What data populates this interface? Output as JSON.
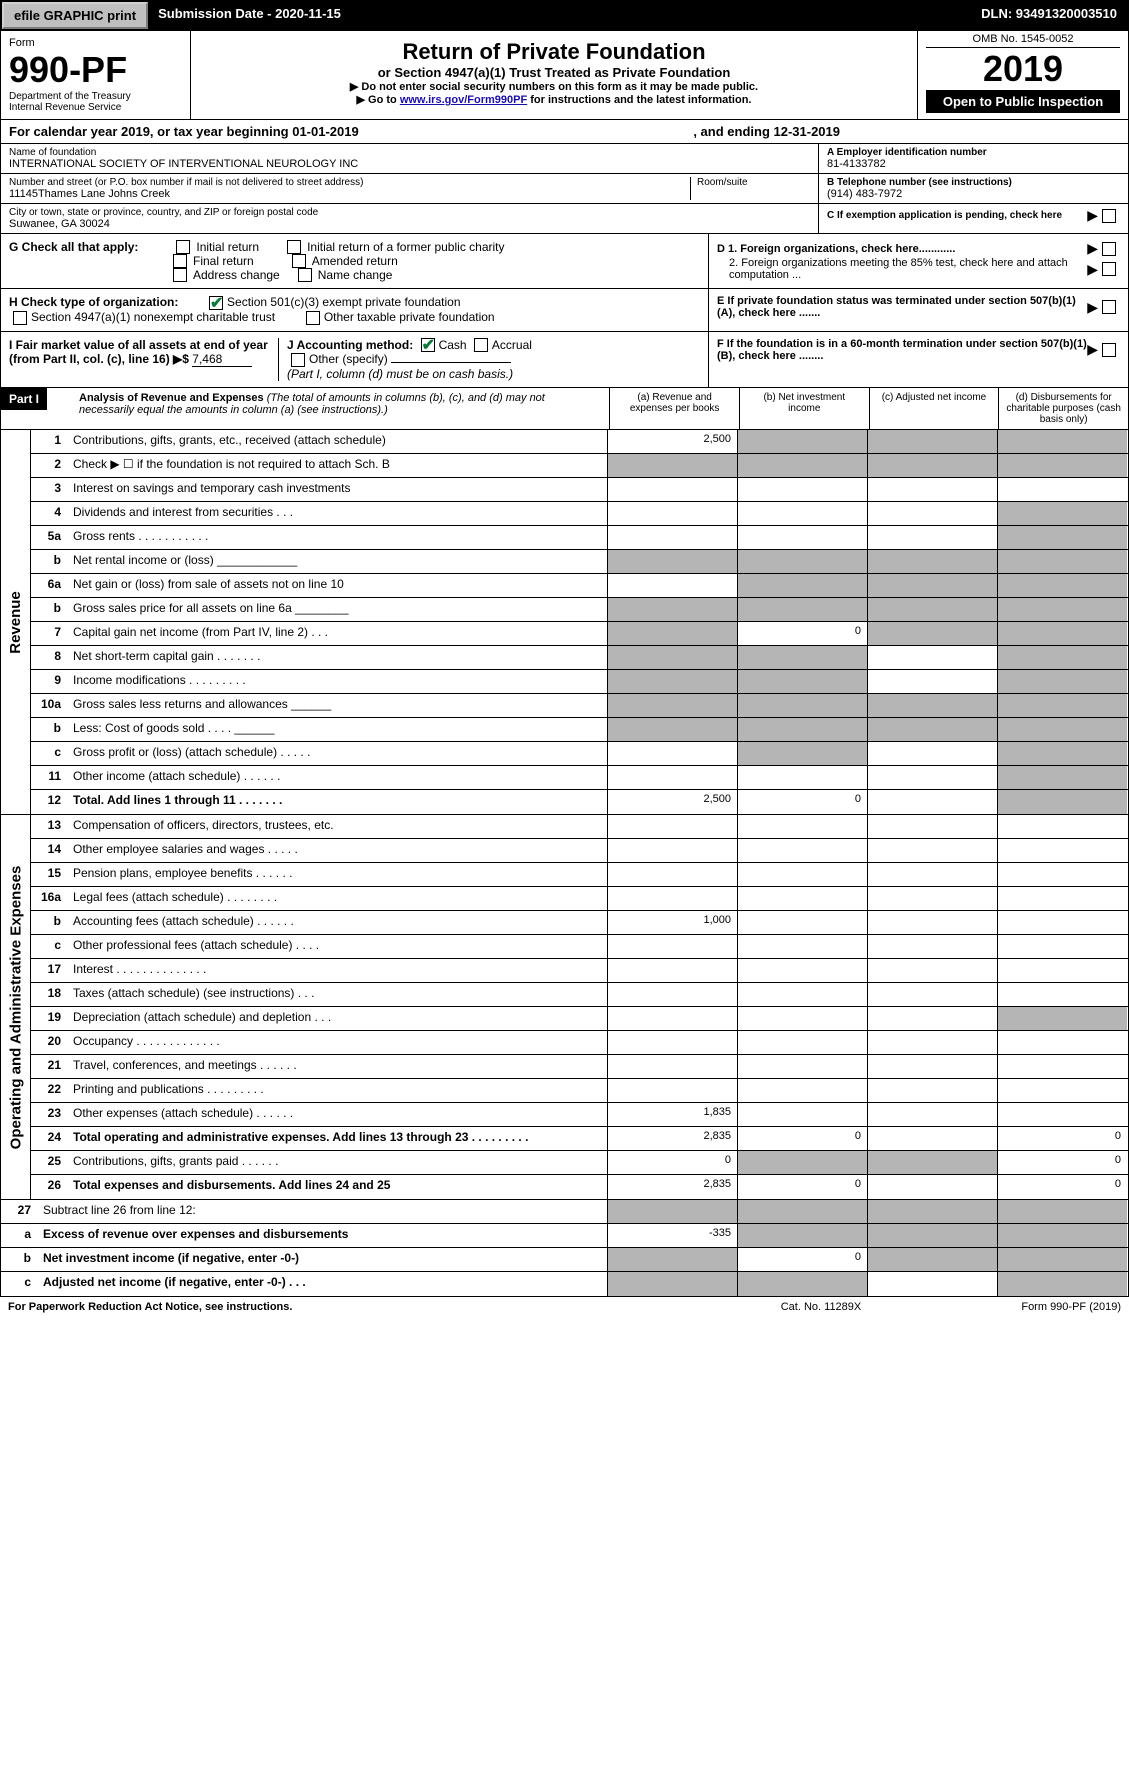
{
  "topbar": {
    "efile": "efile GRAPHIC print",
    "submission_label": "Submission Date - 2020-11-15",
    "dln": "DLN: 93491320003510"
  },
  "header": {
    "form_label": "Form",
    "form_number": "990-PF",
    "dept1": "Department of the Treasury",
    "dept2": "Internal Revenue Service",
    "title": "Return of Private Foundation",
    "subtitle": "or Section 4947(a)(1) Trust Treated as Private Foundation",
    "instr1": "▶ Do not enter social security numbers on this form as it may be made public.",
    "instr2_pre": "▶ Go to ",
    "instr2_link": "www.irs.gov/Form990PF",
    "instr2_post": " for instructions and the latest information.",
    "omb": "OMB No. 1545-0052",
    "year": "2019",
    "open": "Open to Public Inspection"
  },
  "cal": {
    "pre": "For calendar year 2019, or tax year beginning 01-01-2019",
    "mid": "",
    "post": ", and ending 12-31-2019"
  },
  "info": {
    "name_label": "Name of foundation",
    "name": "INTERNATIONAL SOCIETY OF INTERVENTIONAL NEUROLOGY INC",
    "addr_label": "Number and street (or P.O. box number if mail is not delivered to street address)",
    "addr": "11145Thames Lane Johns Creek",
    "room_label": "Room/suite",
    "city_label": "City or town, state or province, country, and ZIP or foreign postal code",
    "city": "Suwanee, GA  30024",
    "a_label": "A Employer identification number",
    "a_val": "81-4133782",
    "b_label": "B Telephone number (see instructions)",
    "b_val": "(914) 483-7972",
    "c_label": "C If exemption application is pending, check here"
  },
  "checks": {
    "g_label": "G Check all that apply:",
    "g_options": [
      "Initial return",
      "Initial return of a former public charity",
      "Final return",
      "Amended return",
      "Address change",
      "Name change"
    ],
    "h_label": "H Check type of organization:",
    "h_opt1": "Section 501(c)(3) exempt private foundation",
    "h_opt2": "Section 4947(a)(1) nonexempt charitable trust",
    "h_opt3": "Other taxable private foundation",
    "i_label": "I Fair market value of all assets at end of year (from Part II, col. (c), line 16) ▶$ ",
    "i_val": "7,468",
    "j_label": "J Accounting method:",
    "j_cash": "Cash",
    "j_accrual": "Accrual",
    "j_other": "Other (specify)",
    "j_note": "(Part I, column (d) must be on cash basis.)",
    "d1": "D 1. Foreign organizations, check here............",
    "d2": "2. Foreign organizations meeting the 85% test, check here and attach computation ...",
    "e": "E  If private foundation status was terminated under section 507(b)(1)(A), check here .......",
    "f": "F  If the foundation is in a 60-month termination under section 507(b)(1)(B), check here ........"
  },
  "part1": {
    "label": "Part I",
    "title": "Analysis of Revenue and Expenses",
    "note": " (The total of amounts in columns (b), (c), and (d) may not necessarily equal the amounts in column (a) (see instructions).)",
    "col_a": "(a)   Revenue and expenses per books",
    "col_b": "(b)  Net investment income",
    "col_c": "(c)  Adjusted net income",
    "col_d": "(d)  Disbursements for charitable purposes (cash basis only)"
  },
  "revenue_label": "Revenue",
  "expenses_label": "Operating and Administrative Expenses",
  "lines": {
    "l1": {
      "n": "1",
      "d": "Contributions, gifts, grants, etc., received (attach schedule)",
      "a": "2,500",
      "grey_bcd": true
    },
    "l2": {
      "n": "2",
      "d": "Check ▶ ☐ if the foundation is not required to attach Sch. B",
      "grey_bcd": true,
      "allgrey": true
    },
    "l3": {
      "n": "3",
      "d": "Interest on savings and temporary cash investments"
    },
    "l4": {
      "n": "4",
      "d": "Dividends and interest from securities   .   .   .",
      "grey_d": true
    },
    "l5a": {
      "n": "5a",
      "d": "Gross rents   .   .   .   .   .   .   .   .   .   .   .",
      "grey_d": true
    },
    "l5b": {
      "n": "b",
      "d": "Net rental income or (loss) ____________",
      "grey_all": true
    },
    "l6a": {
      "n": "6a",
      "d": "Net gain or (loss) from sale of assets not on line 10",
      "grey_bcd": true
    },
    "l6b": {
      "n": "b",
      "d": "Gross sales price for all assets on line 6a ________",
      "grey_all": true
    },
    "l7": {
      "n": "7",
      "d": "Capital gain net income (from Part IV, line 2)    .   .   .",
      "b": "0",
      "grey_a": true,
      "grey_cd": true
    },
    "l8": {
      "n": "8",
      "d": "Net short-term capital gain   .   .   .   .   .   .   .",
      "grey_ab": true,
      "grey_d": true
    },
    "l9": {
      "n": "9",
      "d": "Income modifications  .   .   .   .   .   .   .   .   .",
      "grey_ab": true,
      "grey_d": true
    },
    "l10a": {
      "n": "10a",
      "d": "Gross sales less returns and allowances  ______",
      "grey_all": true
    },
    "l10b": {
      "n": "b",
      "d": "Less: Cost of goods sold     .   .   .   .   ______",
      "grey_all": true
    },
    "l10c": {
      "n": "c",
      "d": "Gross profit or (loss) (attach schedule)    .   .   .   .   .",
      "grey_b": true,
      "grey_d": true
    },
    "l11": {
      "n": "11",
      "d": "Other income (attach schedule)    .   .   .   .   .   .",
      "grey_d": true
    },
    "l12": {
      "n": "12",
      "d": "Total. Add lines 1 through 11    .   .   .   .   .   .   .",
      "a": "2,500",
      "b": "0",
      "bold": true,
      "grey_d": true
    },
    "l13": {
      "n": "13",
      "d": "Compensation of officers, directors, trustees, etc."
    },
    "l14": {
      "n": "14",
      "d": "Other employee salaries and wages    .   .   .   .   ."
    },
    "l15": {
      "n": "15",
      "d": "Pension plans, employee benefits   .   .   .   .   .   ."
    },
    "l16a": {
      "n": "16a",
      "d": "Legal fees (attach schedule)  .   .   .   .   .   .   .   ."
    },
    "l16b": {
      "n": "b",
      "d": "Accounting fees (attach schedule)   .   .   .   .   .   .",
      "a": "1,000"
    },
    "l16c": {
      "n": "c",
      "d": "Other professional fees (attach schedule)    .   .   .   ."
    },
    "l17": {
      "n": "17",
      "d": "Interest  .   .   .   .   .   .   .   .   .   .   .   .   .   ."
    },
    "l18": {
      "n": "18",
      "d": "Taxes (attach schedule) (see instructions)     .   .   ."
    },
    "l19": {
      "n": "19",
      "d": "Depreciation (attach schedule) and depletion    .   .   .",
      "grey_d": true
    },
    "l20": {
      "n": "20",
      "d": "Occupancy  .   .   .   .   .   .   .   .   .   .   .   .   ."
    },
    "l21": {
      "n": "21",
      "d": "Travel, conferences, and meetings  .   .   .   .   .   ."
    },
    "l22": {
      "n": "22",
      "d": "Printing and publications  .   .   .   .   .   .   .   .   ."
    },
    "l23": {
      "n": "23",
      "d": "Other expenses (attach schedule)   .   .   .   .   .   .",
      "a": "1,835"
    },
    "l24": {
      "n": "24",
      "d": "Total operating and administrative expenses. Add lines 13 through 23   .   .   .   .   .   .   .   .   .",
      "a": "2,835",
      "b": "0",
      "dd": "0",
      "bold": true
    },
    "l25": {
      "n": "25",
      "d": "Contributions, gifts, grants paid     .   .   .   .   .   .",
      "a": "0",
      "dd": "0",
      "grey_bc": true
    },
    "l26": {
      "n": "26",
      "d": "Total expenses and disbursements. Add lines 24 and 25",
      "a": "2,835",
      "b": "0",
      "dd": "0",
      "bold": true
    },
    "l27": {
      "n": "27",
      "d": "Subtract line 26 from line 12:",
      "grey_all": true
    },
    "l27a": {
      "n": "a",
      "d": "Excess of revenue over expenses and disbursements",
      "a": "-335",
      "bold": true,
      "grey_bcd": true
    },
    "l27b": {
      "n": "b",
      "d": "Net investment income (if negative, enter -0-)",
      "b": "0",
      "bold": true,
      "grey_a": true,
      "grey_cd": true
    },
    "l27c": {
      "n": "c",
      "d": "Adjusted net income (if negative, enter -0-)   .   .   .",
      "bold": true,
      "grey_ab": true,
      "grey_d": true
    }
  },
  "footer": {
    "l": "For Paperwork Reduction Act Notice, see instructions.",
    "c": "Cat. No. 11289X",
    "r": "Form 990-PF (2019)"
  }
}
